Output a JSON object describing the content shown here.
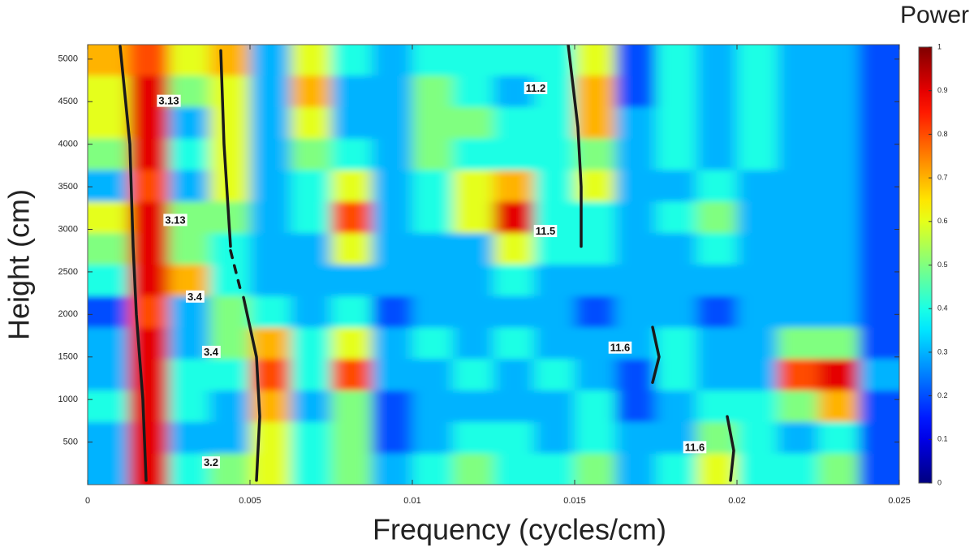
{
  "chart_data": {
    "type": "heatmap",
    "xlabel": "Frequency (cycles/cm)",
    "ylabel": "Height (cm)",
    "colorbar_label": "Power",
    "xlim": [
      0,
      0.025
    ],
    "ylim": [
      0,
      5170
    ],
    "xticks": [
      0,
      0.005,
      0.01,
      0.015,
      0.02,
      0.025
    ],
    "yticks": [
      500,
      1000,
      1500,
      2000,
      2500,
      3000,
      3500,
      4000,
      4500,
      5000
    ],
    "zlim": [
      0,
      1
    ],
    "zticks": [
      0,
      0.1,
      0.2,
      0.3,
      0.4,
      0.5,
      0.6,
      0.7,
      0.8,
      0.9,
      1
    ],
    "colormap": "jet",
    "x_edges": [
      0,
      0.00125,
      0.0025,
      0.00375,
      0.005,
      0.00625,
      0.0075,
      0.00875,
      0.01,
      0.01125,
      0.0125,
      0.01375,
      0.015,
      0.01625,
      0.0175,
      0.01875,
      0.02,
      0.02125,
      0.0225,
      0.02375,
      0.025
    ],
    "y_edges": [
      0,
      370,
      740,
      1110,
      1480,
      1850,
      2220,
      2590,
      2960,
      3330,
      3700,
      4070,
      4440,
      4810,
      5170
    ],
    "z": [
      [
        0.3,
        0.9,
        0.4,
        0.5,
        0.6,
        0.4,
        0.5,
        0.3,
        0.4,
        0.5,
        0.4,
        0.4,
        0.5,
        0.3,
        0.4,
        0.6,
        0.4,
        0.4,
        0.5,
        0.2
      ],
      [
        0.3,
        0.9,
        0.3,
        0.3,
        0.6,
        0.4,
        0.5,
        0.2,
        0.3,
        0.4,
        0.4,
        0.3,
        0.4,
        0.3,
        0.3,
        0.5,
        0.4,
        0.3,
        0.4,
        0.2
      ],
      [
        0.4,
        0.9,
        0.4,
        0.3,
        0.7,
        0.3,
        0.5,
        0.2,
        0.3,
        0.3,
        0.3,
        0.3,
        0.4,
        0.2,
        0.3,
        0.4,
        0.4,
        0.5,
        0.7,
        0.2
      ],
      [
        0.3,
        0.9,
        0.4,
        0.4,
        0.8,
        0.4,
        0.8,
        0.3,
        0.3,
        0.4,
        0.3,
        0.4,
        0.3,
        0.2,
        0.4,
        0.3,
        0.3,
        0.8,
        0.9,
        0.3
      ],
      [
        0.3,
        0.9,
        0.3,
        0.5,
        0.7,
        0.4,
        0.6,
        0.3,
        0.4,
        0.3,
        0.4,
        0.3,
        0.3,
        0.3,
        0.4,
        0.3,
        0.3,
        0.5,
        0.5,
        0.2
      ],
      [
        0.2,
        0.8,
        0.3,
        0.5,
        0.4,
        0.3,
        0.4,
        0.2,
        0.3,
        0.3,
        0.3,
        0.3,
        0.2,
        0.3,
        0.3,
        0.2,
        0.3,
        0.3,
        0.3,
        0.2
      ],
      [
        0.4,
        0.9,
        0.7,
        0.4,
        0.3,
        0.3,
        0.3,
        0.3,
        0.3,
        0.3,
        0.4,
        0.3,
        0.3,
        0.3,
        0.3,
        0.3,
        0.3,
        0.3,
        0.3,
        0.2
      ],
      [
        0.5,
        0.9,
        0.5,
        0.4,
        0.3,
        0.3,
        0.6,
        0.3,
        0.3,
        0.3,
        0.6,
        0.4,
        0.4,
        0.3,
        0.3,
        0.4,
        0.3,
        0.3,
        0.3,
        0.2
      ],
      [
        0.6,
        0.9,
        0.5,
        0.5,
        0.3,
        0.4,
        0.8,
        0.3,
        0.4,
        0.6,
        0.9,
        0.4,
        0.4,
        0.3,
        0.4,
        0.5,
        0.3,
        0.3,
        0.3,
        0.2
      ],
      [
        0.3,
        0.8,
        0.3,
        0.6,
        0.3,
        0.4,
        0.6,
        0.3,
        0.4,
        0.6,
        0.7,
        0.4,
        0.6,
        0.3,
        0.3,
        0.4,
        0.3,
        0.3,
        0.3,
        0.2
      ],
      [
        0.5,
        0.9,
        0.4,
        0.6,
        0.3,
        0.5,
        0.4,
        0.3,
        0.5,
        0.4,
        0.4,
        0.4,
        0.5,
        0.3,
        0.4,
        0.3,
        0.4,
        0.3,
        0.3,
        0.2
      ],
      [
        0.6,
        0.9,
        0.3,
        0.6,
        0.3,
        0.6,
        0.3,
        0.3,
        0.5,
        0.5,
        0.4,
        0.4,
        0.7,
        0.3,
        0.4,
        0.3,
        0.4,
        0.3,
        0.3,
        0.2
      ],
      [
        0.6,
        0.9,
        0.5,
        0.6,
        0.3,
        0.7,
        0.3,
        0.3,
        0.5,
        0.4,
        0.3,
        0.4,
        0.7,
        0.2,
        0.4,
        0.3,
        0.4,
        0.3,
        0.3,
        0.2
      ],
      [
        0.7,
        0.8,
        0.6,
        0.7,
        0.3,
        0.6,
        0.4,
        0.3,
        0.4,
        0.4,
        0.4,
        0.4,
        0.6,
        0.2,
        0.4,
        0.3,
        0.4,
        0.3,
        0.3,
        0.2
      ]
    ],
    "ridges": [
      {
        "x": [
          0.001,
          0.0013,
          0.0014,
          0.0015,
          0.0017,
          0.0018
        ],
        "y": [
          5150,
          4000,
          2800,
          2000,
          1000,
          50
        ],
        "dashed": false
      },
      {
        "x": [
          0.0041,
          0.0042,
          0.0044
        ],
        "y": [
          5100,
          4000,
          2800
        ],
        "dashed": false
      },
      {
        "x": [
          0.0044,
          0.0047
        ],
        "y": [
          2750,
          2300
        ],
        "dashed": true
      },
      {
        "x": [
          0.0048,
          0.0052,
          0.0053,
          0.0052
        ],
        "y": [
          2200,
          1500,
          800,
          50
        ],
        "dashed": false
      },
      {
        "x": [
          0.0148,
          0.0151,
          0.0152,
          0.0152
        ],
        "y": [
          5170,
          4200,
          3500,
          2800
        ],
        "dashed": false
      },
      {
        "x": [
          0.0174,
          0.0176,
          0.0174
        ],
        "y": [
          1850,
          1500,
          1200
        ],
        "dashed": false
      },
      {
        "x": [
          0.0197,
          0.0199,
          0.0198
        ],
        "y": [
          800,
          400,
          50
        ],
        "dashed": false
      }
    ],
    "annotations": [
      {
        "text": "3.13",
        "x": 0.0025,
        "y": 4500
      },
      {
        "text": "3.13",
        "x": 0.0027,
        "y": 3100
      },
      {
        "text": "3.4",
        "x": 0.0033,
        "y": 2200
      },
      {
        "text": "3.4",
        "x": 0.0038,
        "y": 1550
      },
      {
        "text": "3.2",
        "x": 0.0038,
        "y": 250
      },
      {
        "text": "11.2",
        "x": 0.0138,
        "y": 4650
      },
      {
        "text": "11.5",
        "x": 0.0141,
        "y": 2970
      },
      {
        "text": "11.6",
        "x": 0.0164,
        "y": 1600
      },
      {
        "text": "11.6",
        "x": 0.0187,
        "y": 430
      }
    ]
  }
}
